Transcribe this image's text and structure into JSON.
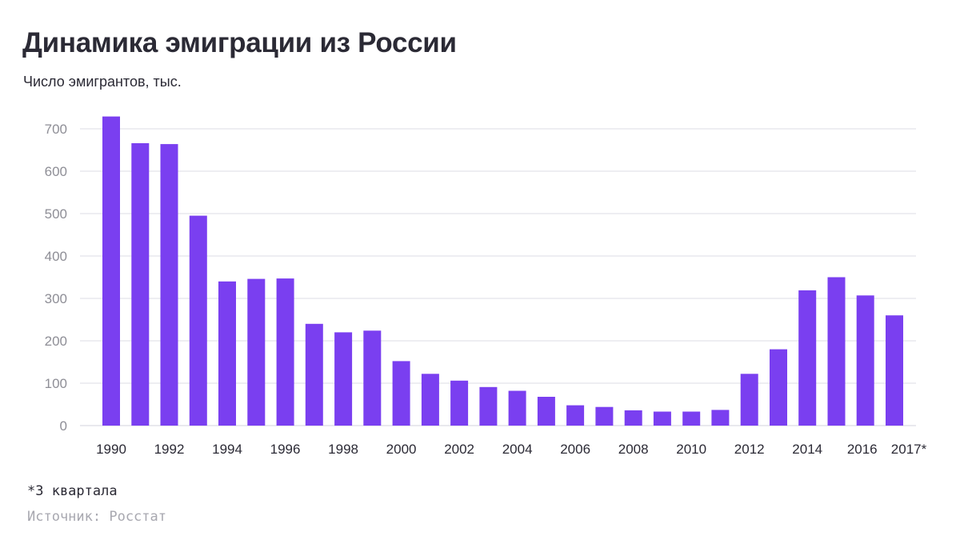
{
  "chart_data": {
    "type": "bar",
    "title": "Динамика эмиграции из России",
    "subtitle": "Число эмигрантов, тыс.",
    "xlabel": "",
    "ylabel": "",
    "categories": [
      "1990",
      "1991",
      "1992",
      "1993",
      "1994",
      "1995",
      "1996",
      "1997",
      "1998",
      "1999",
      "2000",
      "2001",
      "2002",
      "2003",
      "2004",
      "2005",
      "2006",
      "2007",
      "2008",
      "2009",
      "2010",
      "2011",
      "2012",
      "2013",
      "2014",
      "2015",
      "2016",
      "2017"
    ],
    "x_tick_labels": [
      "1990",
      "",
      "1992",
      "",
      "1994",
      "",
      "1996",
      "",
      "1998",
      "",
      "2000",
      "",
      "2002",
      "",
      "2004",
      "",
      "2006",
      "",
      "2008",
      "",
      "2010",
      "",
      "2012",
      "",
      "2014",
      "",
      "2016",
      "2017*"
    ],
    "values": [
      729,
      666,
      664,
      495,
      340,
      346,
      347,
      240,
      220,
      224,
      152,
      122,
      106,
      91,
      82,
      68,
      48,
      44,
      36,
      33,
      33,
      37,
      122,
      180,
      319,
      350,
      307,
      260
    ],
    "ylim": [
      0,
      720
    ],
    "yticks": [
      0,
      100,
      200,
      300,
      400,
      500,
      600,
      700
    ],
    "grid": true,
    "bar_color": "#7a3ff0",
    "grid_color": "#dcdce4",
    "footnote": "*3 квартала",
    "source": "Источник: Росстат"
  }
}
